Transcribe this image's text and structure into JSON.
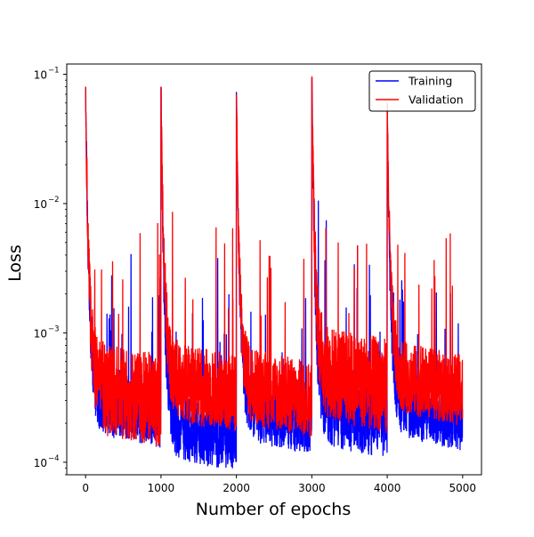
{
  "chart_data": {
    "type": "line",
    "title": "",
    "xlabel": "Number of epochs",
    "ylabel": "Loss",
    "yscale": "log",
    "xlim": [
      -250,
      5250
    ],
    "ylim": [
      8e-05,
      0.12
    ],
    "x_ticks": [
      0,
      1000,
      2000,
      3000,
      4000,
      5000
    ],
    "x_tick_labels": [
      "0",
      "1000",
      "2000",
      "3000",
      "4000",
      "5000"
    ],
    "y_ticks": [
      0.0001,
      0.001,
      0.01,
      0.1
    ],
    "y_tick_labels": [
      "10",
      "10",
      "10",
      "10"
    ],
    "y_tick_exponents": [
      "−4",
      "−3",
      "−2",
      "−1"
    ],
    "grid": false,
    "legend_position": "top-right",
    "series": [
      {
        "name": "Training",
        "color": "#0000ff",
        "cycles": [
          {
            "x_start": 0,
            "peak": 0.08,
            "end_low": 0.00017,
            "end_high": 0.0006
          },
          {
            "x_start": 1000,
            "peak": 0.08,
            "end_low": 0.00011,
            "end_high": 0.0004
          },
          {
            "x_start": 2000,
            "peak": 0.073,
            "end_low": 0.00015,
            "end_high": 0.00045
          },
          {
            "x_start": 3000,
            "peak": 0.09,
            "end_low": 0.00014,
            "end_high": 0.0007
          },
          {
            "x_start": 4000,
            "peak": 0.06,
            "end_low": 0.00016,
            "end_high": 0.0005
          }
        ]
      },
      {
        "name": "Validation",
        "color": "#ff0000",
        "cycles": [
          {
            "x_start": 0,
            "peak": 0.08,
            "end_low": 0.00017,
            "end_high": 0.0009
          },
          {
            "x_start": 1000,
            "peak": 0.08,
            "end_low": 0.00022,
            "end_high": 0.0009
          },
          {
            "x_start": 2000,
            "peak": 0.07,
            "end_low": 0.0002,
            "end_high": 0.0008
          },
          {
            "x_start": 3000,
            "peak": 0.09,
            "end_low": 0.00022,
            "end_high": 0.0012
          },
          {
            "x_start": 4000,
            "peak": 0.06,
            "end_low": 0.00025,
            "end_high": 0.0009
          }
        ]
      }
    ]
  }
}
